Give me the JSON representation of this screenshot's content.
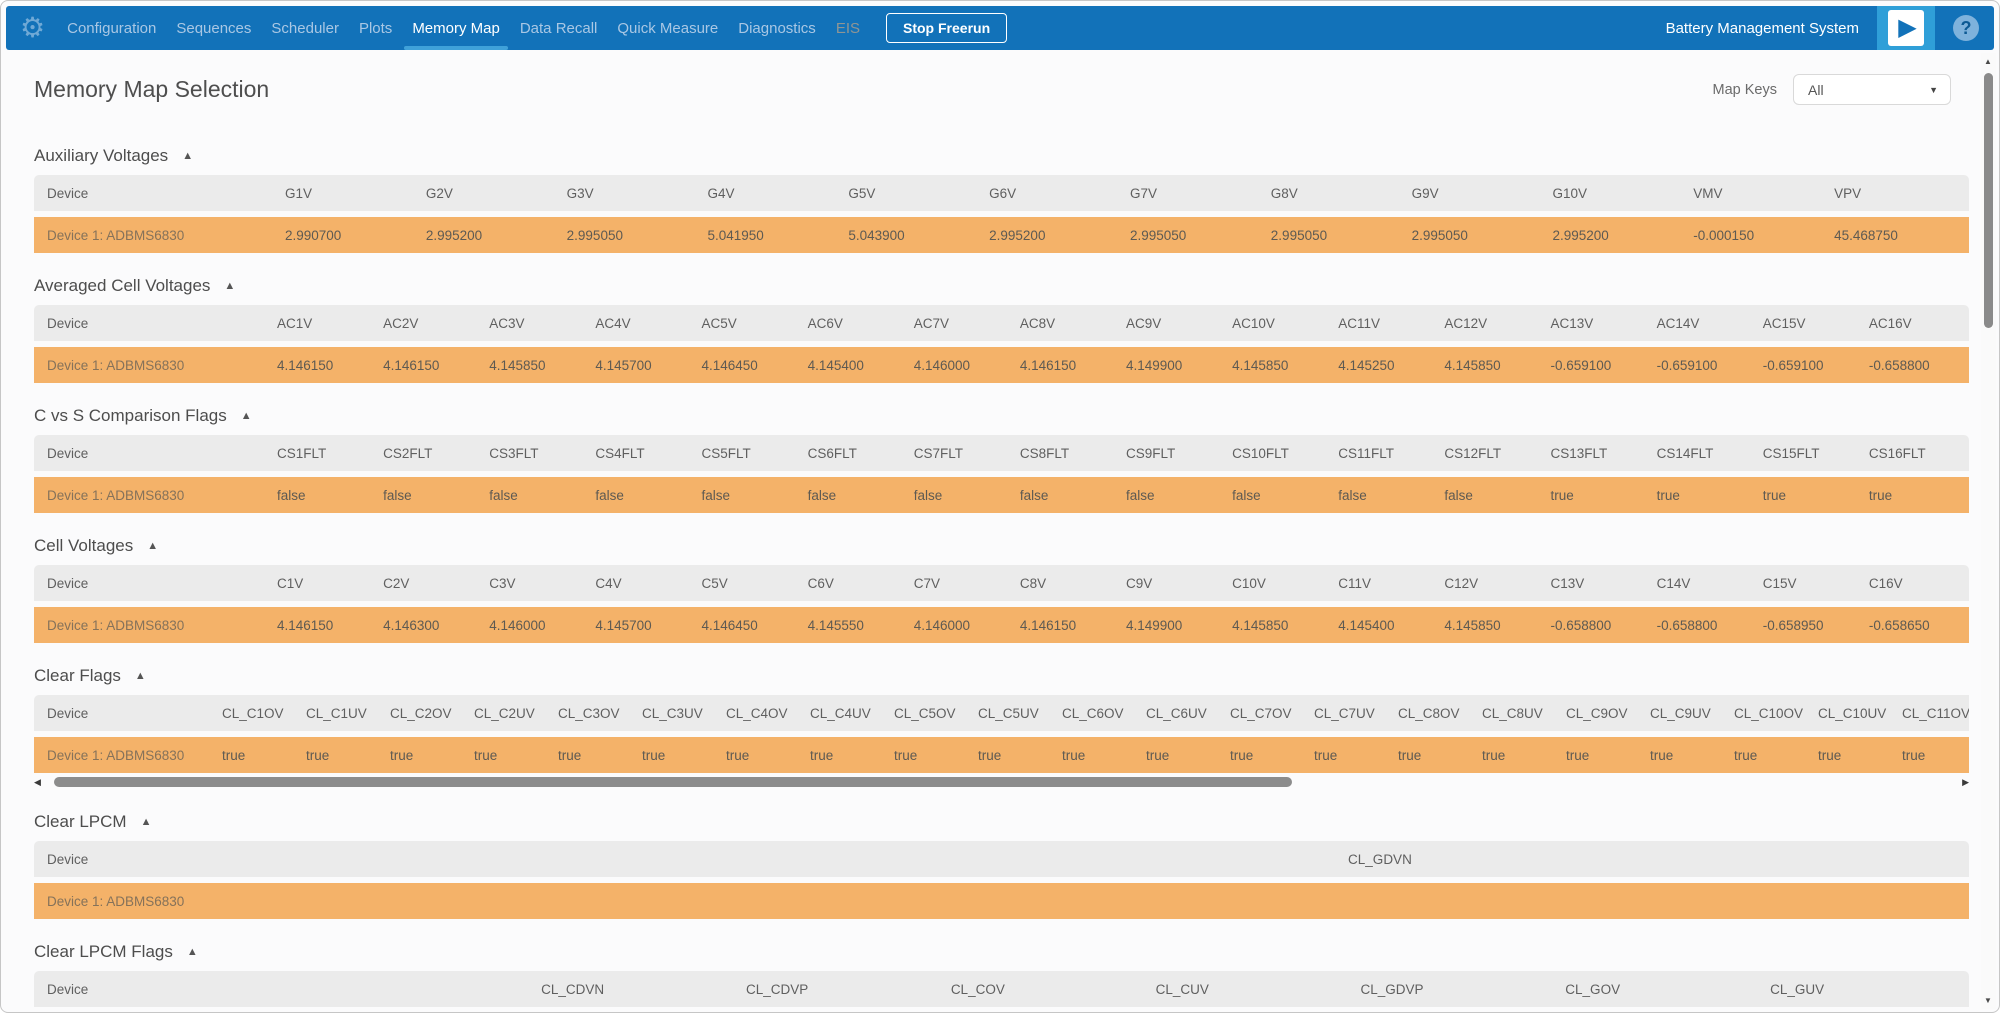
{
  "colors": {
    "navbar_blue": "#1272b9",
    "accent_light_blue": "#2f9fd8",
    "active_tab_underline": "#3fa1d9",
    "row_orange": "#f4b269",
    "table_header_gray": "#ebebeb"
  },
  "icons": {
    "gear": "⚙",
    "play": "▶",
    "help": "?",
    "collapse": "▲",
    "dropdown": "▼",
    "scroll_up": "▲",
    "scroll_down": "▼",
    "scroll_left": "◀",
    "scroll_right": "▶"
  },
  "navbar": {
    "tabs": [
      {
        "label": "Configuration",
        "state": "normal"
      },
      {
        "label": "Sequences",
        "state": "normal"
      },
      {
        "label": "Scheduler",
        "state": "normal"
      },
      {
        "label": "Plots",
        "state": "normal"
      },
      {
        "label": "Memory Map",
        "state": "active"
      },
      {
        "label": "Data Recall",
        "state": "normal"
      },
      {
        "label": "Quick Measure",
        "state": "normal"
      },
      {
        "label": "Diagnostics",
        "state": "normal"
      },
      {
        "label": "EIS",
        "state": "disabled"
      }
    ],
    "stop_button": "Stop Freerun",
    "app_title": "Battery Management System"
  },
  "page": {
    "title": "Memory Map Selection",
    "map_keys_label": "Map Keys",
    "map_keys_value": "All"
  },
  "labels": {
    "device": "Device"
  },
  "sections": [
    {
      "id": "auxiliary-voltages",
      "title": "Auxiliary Voltages",
      "layout": "aux",
      "columns": [
        "G1V",
        "G2V",
        "G3V",
        "G4V",
        "G5V",
        "G6V",
        "G7V",
        "G8V",
        "G9V",
        "G10V",
        "VMV",
        "VPV"
      ],
      "row": {
        "device": "Device 1: ADBMS6830",
        "values": [
          "2.990700",
          "2.995200",
          "2.995050",
          "5.041950",
          "5.043900",
          "2.995200",
          "2.995050",
          "2.995050",
          "2.995050",
          "2.995200",
          "-0.000150",
          "45.468750"
        ]
      }
    },
    {
      "id": "averaged-cell-voltages",
      "title": "Averaged Cell Voltages",
      "layout": "c16",
      "columns": [
        "AC1V",
        "AC2V",
        "AC3V",
        "AC4V",
        "AC5V",
        "AC6V",
        "AC7V",
        "AC8V",
        "AC9V",
        "AC10V",
        "AC11V",
        "AC12V",
        "AC13V",
        "AC14V",
        "AC15V",
        "AC16V"
      ],
      "row": {
        "device": "Device 1: ADBMS6830",
        "values": [
          "4.146150",
          "4.146150",
          "4.145850",
          "4.145700",
          "4.146450",
          "4.145400",
          "4.146000",
          "4.146150",
          "4.149900",
          "4.145850",
          "4.145250",
          "4.145850",
          "-0.659100",
          "-0.659100",
          "-0.659100",
          "-0.658800"
        ]
      }
    },
    {
      "id": "c-vs-s-comparison-flags",
      "title": "C vs S Comparison Flags",
      "layout": "c16",
      "columns": [
        "CS1FLT",
        "CS2FLT",
        "CS3FLT",
        "CS4FLT",
        "CS5FLT",
        "CS6FLT",
        "CS7FLT",
        "CS8FLT",
        "CS9FLT",
        "CS10FLT",
        "CS11FLT",
        "CS12FLT",
        "CS13FLT",
        "CS14FLT",
        "CS15FLT",
        "CS16FLT"
      ],
      "row": {
        "device": "Device 1: ADBMS6830",
        "values": [
          "false",
          "false",
          "false",
          "false",
          "false",
          "false",
          "false",
          "false",
          "false",
          "false",
          "false",
          "false",
          "true",
          "true",
          "true",
          "true"
        ]
      }
    },
    {
      "id": "cell-voltages",
      "title": "Cell Voltages",
      "layout": "c16",
      "columns": [
        "C1V",
        "C2V",
        "C3V",
        "C4V",
        "C5V",
        "C6V",
        "C7V",
        "C8V",
        "C9V",
        "C10V",
        "C11V",
        "C12V",
        "C13V",
        "C14V",
        "C15V",
        "C16V"
      ],
      "row": {
        "device": "Device 1: ADBMS6830",
        "values": [
          "4.146150",
          "4.146300",
          "4.146000",
          "4.145700",
          "4.146450",
          "4.145550",
          "4.146000",
          "4.146150",
          "4.149900",
          "4.145850",
          "4.145400",
          "4.145850",
          "-0.658800",
          "-0.658800",
          "-0.658950",
          "-0.658650"
        ]
      }
    },
    {
      "id": "clear-flags",
      "title": "Clear Flags",
      "layout": "scroll",
      "hscrollbar": true,
      "columns": [
        "CL_C1OV",
        "CL_C1UV",
        "CL_C2OV",
        "CL_C2UV",
        "CL_C3OV",
        "CL_C3UV",
        "CL_C4OV",
        "CL_C4UV",
        "CL_C5OV",
        "CL_C5UV",
        "CL_C6OV",
        "CL_C6UV",
        "CL_C7OV",
        "CL_C7UV",
        "CL_C8OV",
        "CL_C8UV",
        "CL_C9OV",
        "CL_C9UV",
        "CL_C10OV",
        "CL_C10UV",
        "CL_C11OV"
      ],
      "row": {
        "device": "Device 1: ADBMS6830",
        "values": [
          "true",
          "true",
          "true",
          "true",
          "true",
          "true",
          "true",
          "true",
          "true",
          "true",
          "true",
          "true",
          "true",
          "true",
          "true",
          "true",
          "true",
          "true",
          "true",
          "true",
          "true"
        ]
      }
    },
    {
      "id": "clear-lpcm",
      "title": "Clear LPCM",
      "layout": "lpcm",
      "columns": [
        "CL_GDVN"
      ],
      "row": {
        "device": "Device 1: ADBMS6830",
        "values": [
          ""
        ]
      }
    },
    {
      "id": "clear-lpcm-flags",
      "title": "Clear LPCM Flags",
      "layout": "lpcmflags",
      "columns": [
        "CL_CDVN",
        "CL_CDVP",
        "CL_COV",
        "CL_CUV",
        "CL_GDVP",
        "CL_GOV",
        "CL_GUV"
      ],
      "row": {
        "device": "Device 1: ADBMS6830",
        "values": [
          "",
          "",
          "",
          "",
          "",
          "",
          ""
        ]
      }
    }
  ]
}
